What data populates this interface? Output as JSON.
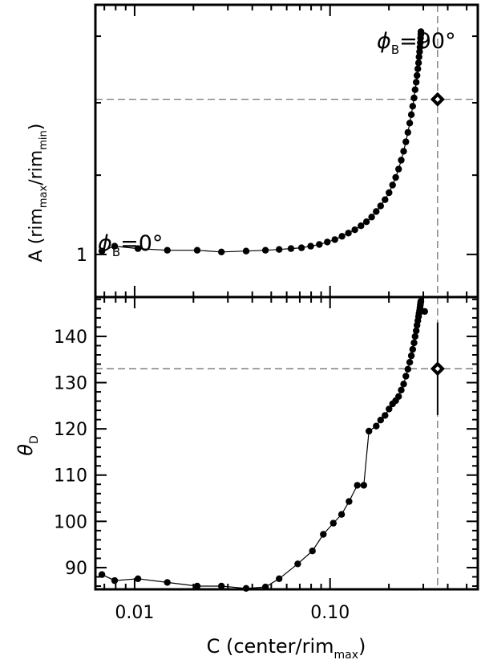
{
  "chart_data": [
    {
      "type": "scatter",
      "panel": "top",
      "xscale": "log",
      "yscale": "log",
      "xlim": [
        0.0063,
        0.57
      ],
      "ylim": [
        0.95,
        1.35
      ],
      "ylabel": {
        "base": "A (rim",
        "sub1": "max",
        "mid": "/rim",
        "sub2": "min",
        "end": ")"
      },
      "yticks": [
        1
      ],
      "ytick_labels": [
        "1"
      ],
      "grid": false,
      "legend": "none",
      "annotations": [
        {
          "text": "ϕ",
          "sub": "B",
          "rest": "=0°"
        },
        {
          "text": "ϕ",
          "sub": "B",
          "rest": "=90°"
        }
      ],
      "series": [
        {
          "x": [
            0.0068,
            0.0079,
            0.0104,
            0.0147,
            0.0209,
            0.0278,
            0.0372,
            0.0467,
            0.0549,
            0.0631,
            0.0714,
            0.0796,
            0.0881,
            0.0968,
            0.1058,
            0.1151,
            0.1241,
            0.1339,
            0.144,
            0.1535,
            0.1632,
            0.1723,
            0.1815,
            0.1912,
            0.2003,
            0.2089,
            0.2168,
            0.2242,
            0.2313,
            0.2379,
            0.2444,
            0.2502,
            0.2556,
            0.2604,
            0.2648,
            0.2689,
            0.2724,
            0.2759,
            0.2787,
            0.2811,
            0.2836,
            0.2853,
            0.2871,
            0.2885,
            0.2897,
            0.2905,
            0.2914,
            0.2918
          ],
          "y": [
            1.004,
            1.01,
            1.007,
            1.005,
            1.005,
            1.003,
            1.004,
            1.005,
            1.006,
            1.007,
            1.008,
            1.01,
            1.012,
            1.015,
            1.018,
            1.022,
            1.026,
            1.03,
            1.035,
            1.04,
            1.046,
            1.053,
            1.06,
            1.068,
            1.077,
            1.087,
            1.097,
            1.108,
            1.12,
            1.132,
            1.145,
            1.158,
            1.171,
            1.183,
            1.195,
            1.207,
            1.219,
            1.23,
            1.24,
            1.25,
            1.259,
            1.268,
            1.276,
            1.283,
            1.29,
            1.297,
            1.303,
            1.307
          ]
        }
      ],
      "measurement": {
        "x": 0.355,
        "y": 1.205
      },
      "reference": {
        "x": 0.355,
        "y": 1.205
      }
    },
    {
      "type": "scatter",
      "panel": "bottom",
      "xscale": "log",
      "xlim": [
        0.0063,
        0.57
      ],
      "ylim": [
        85.3,
        148.5
      ],
      "xlabel": {
        "base": "C (center/rim",
        "sub": "max",
        "end": ")"
      },
      "ylabel": {
        "base": "θ",
        "sub": "D"
      },
      "xticks": [
        0.01,
        0.1
      ],
      "xtick_labels": [
        "0.01",
        "0.10"
      ],
      "yticks": [
        90,
        100,
        110,
        120,
        130,
        140
      ],
      "ytick_labels": [
        "90",
        "100",
        "110",
        "120",
        "130",
        "140"
      ],
      "grid": false,
      "legend": "none",
      "series": [
        {
          "x": [
            0.0068,
            0.0079,
            0.0104,
            0.0147,
            0.0209,
            0.0278,
            0.0372,
            0.0467,
            0.0549,
            0.0683,
            0.0812,
            0.0924,
            0.1039,
            0.1146,
            0.1251,
            0.1378,
            0.1488,
            0.158,
            0.1723,
            0.1815,
            0.1912,
            0.2003,
            0.2089,
            0.2168,
            0.2242,
            0.2313,
            0.2379,
            0.2444,
            0.2502,
            0.2556,
            0.2604,
            0.2648,
            0.2689,
            0.2724,
            0.2759,
            0.2787,
            0.2811,
            0.2836,
            0.2853,
            0.2871,
            0.2885,
            0.2897,
            0.2905,
            0.2914
          ],
          "y": [
            88.5,
            87.2,
            87.6,
            86.8,
            86.0,
            86.0,
            85.5,
            85.8,
            87.6,
            90.8,
            93.6,
            97.2,
            99.6,
            101.5,
            104.3,
            107.8,
            107.8,
            119.5,
            120.6,
            121.9,
            122.9,
            124.3,
            125.4,
            126.1,
            127.0,
            128.4,
            129.7,
            131.4,
            132.9,
            134.4,
            135.8,
            137.2,
            138.6,
            140.0,
            141.2,
            142.4,
            143.4,
            144.3,
            145.0,
            145.6,
            146.2,
            146.8,
            147.2,
            147.6
          ],
          "outlier_points": [
            {
              "x": 0.305,
              "y": 145.4
            }
          ]
        }
      ],
      "measurement": {
        "x": 0.355,
        "y": 133.0,
        "yerr": 10.0
      },
      "reference": {
        "x": 0.355,
        "y": 133.0
      }
    }
  ]
}
